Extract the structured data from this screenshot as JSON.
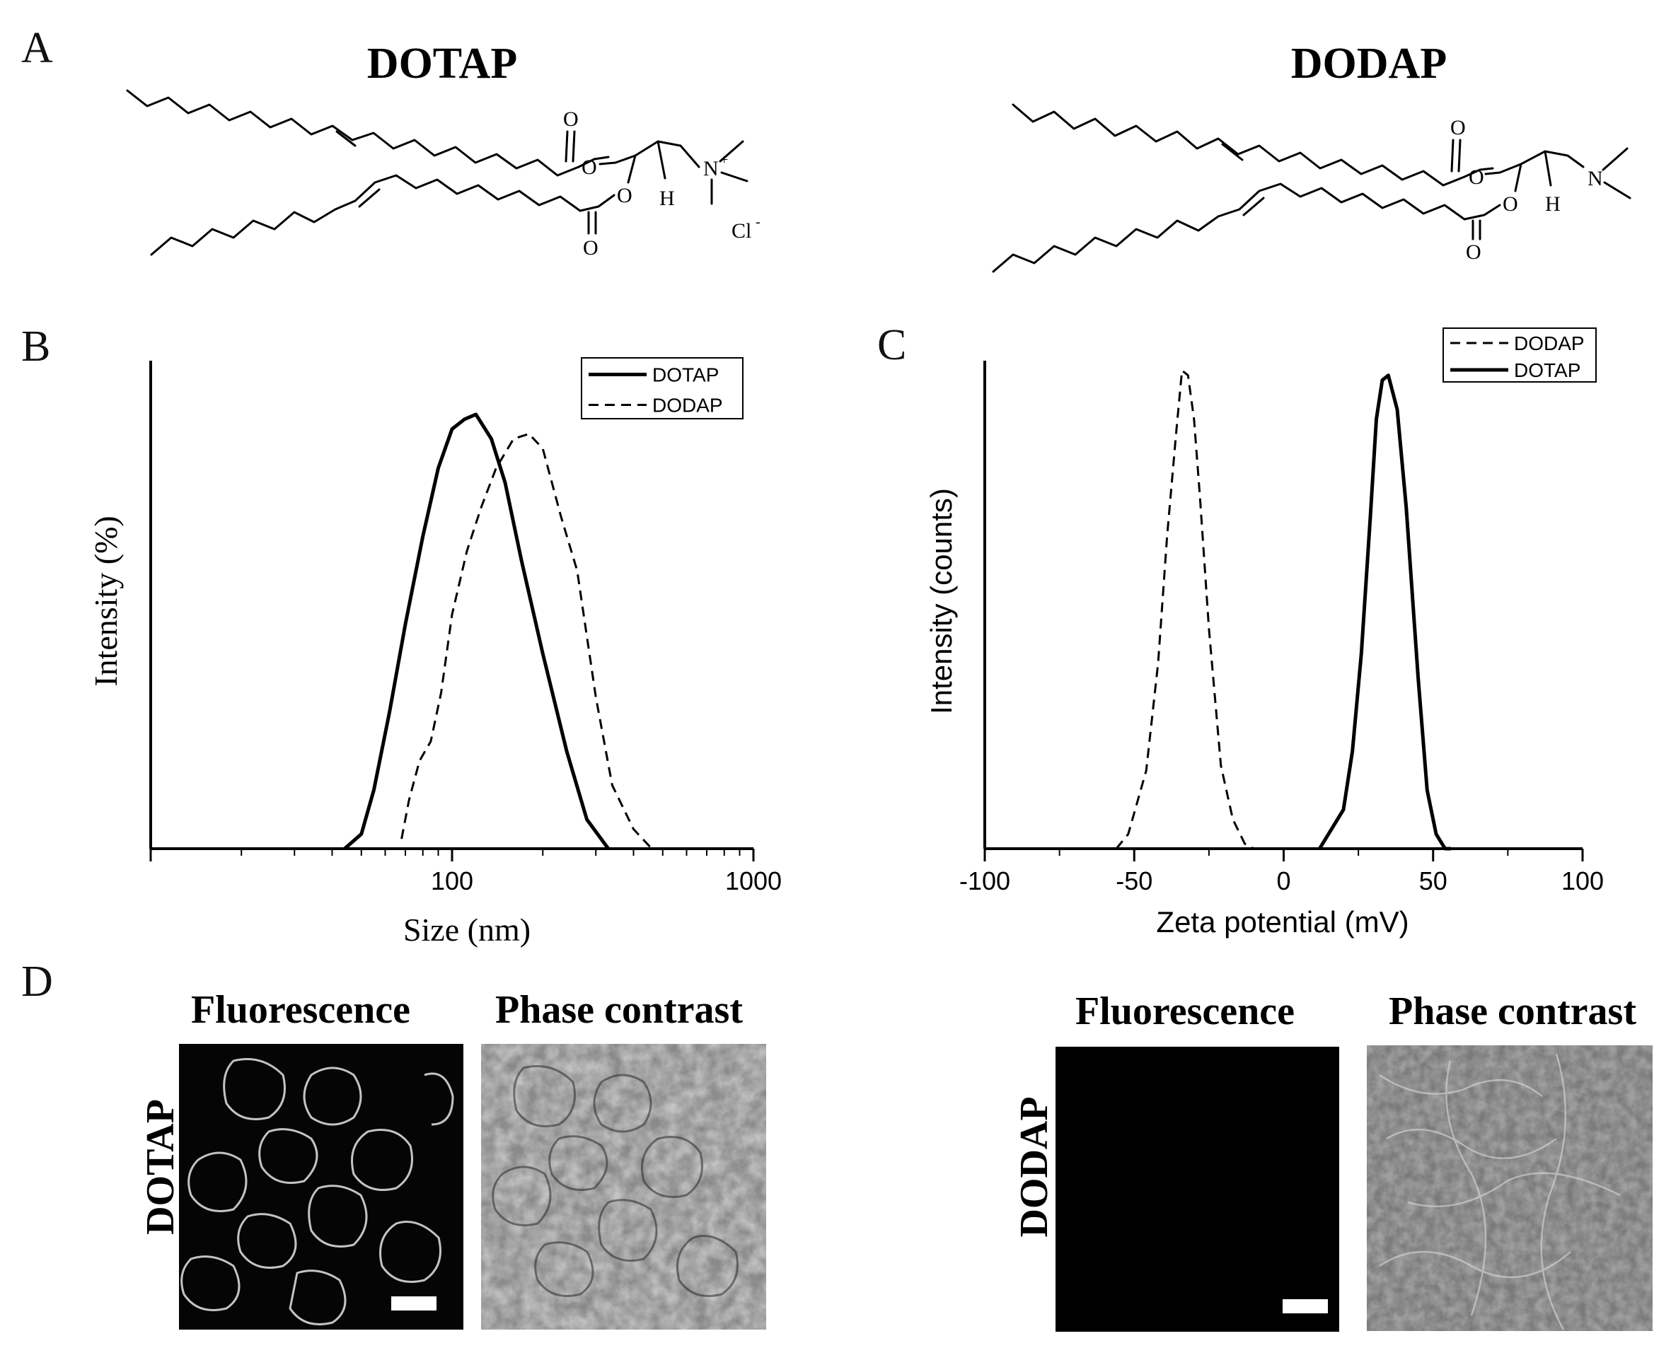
{
  "panels": {
    "A": {
      "letter": "A",
      "structures": [
        {
          "name": "DOTAP",
          "atoms": {
            "o1": "O",
            "o2": "O",
            "o3": "O",
            "o4": "O",
            "n": "N",
            "charge": "+",
            "h": "H",
            "cl": "Cl",
            "cl_charge": "-"
          }
        },
        {
          "name": "DODAP",
          "atoms": {
            "o1": "O",
            "o2": "O",
            "o3": "O",
            "o4": "O",
            "n": "N",
            "h": "H"
          }
        }
      ]
    },
    "B": {
      "letter": "B"
    },
    "C": {
      "letter": "C"
    },
    "D": {
      "letter": "D",
      "column_labels": [
        "Fluorescence",
        "Phase contrast",
        "Fluorescence",
        "Phase contrast"
      ],
      "row_labels": [
        "DOTAP",
        "DODAP"
      ]
    }
  },
  "chart_data": [
    {
      "type": "line",
      "panel": "B",
      "xlabel": "Size (nm)",
      "ylabel": "Intensity (%)",
      "x_scale": "log",
      "xlim": [
        10,
        1000
      ],
      "ylim": [
        0,
        100
      ],
      "xticks": [
        100,
        1000
      ],
      "xtick_labels": [
        "100",
        "1000"
      ],
      "legend": {
        "position": "top-right",
        "entries": [
          "DOTAP",
          "DODAP"
        ]
      },
      "series": [
        {
          "name": "DOTAP",
          "style": "solid",
          "x": [
            44,
            50,
            55,
            62,
            70,
            80,
            90,
            100,
            110,
            120,
            135,
            150,
            170,
            200,
            240,
            280,
            330
          ],
          "y": [
            0,
            3,
            12,
            28,
            46,
            64,
            78,
            86,
            88,
            89,
            84,
            75,
            59,
            40,
            20,
            6,
            0
          ]
        },
        {
          "name": "DODAP",
          "style": "dashed",
          "x": [
            68,
            72,
            78,
            85,
            92,
            100,
            112,
            125,
            140,
            160,
            180,
            200,
            230,
            260,
            300,
            340,
            400,
            460
          ],
          "y": [
            2,
            10,
            18,
            22,
            32,
            48,
            61,
            70,
            78,
            84,
            85,
            82,
            68,
            57,
            31,
            13,
            4,
            0
          ]
        }
      ]
    },
    {
      "type": "line",
      "panel": "C",
      "xlabel": "Zeta potential (mV)",
      "ylabel": "Intensity (counts)",
      "xlim": [
        -100,
        100
      ],
      "ylim": [
        0,
        100
      ],
      "xticks": [
        -100,
        -50,
        0,
        50,
        100
      ],
      "xtick_labels": [
        "-100",
        "-50",
        "0",
        "50",
        "100"
      ],
      "legend": {
        "position": "top-right",
        "entries": [
          "DODAP",
          "DOTAP"
        ]
      },
      "series": [
        {
          "name": "DODAP",
          "style": "dashed",
          "x": [
            -56,
            -52,
            -46,
            -42,
            -39,
            -36,
            -34,
            -32,
            -30,
            -28,
            -25,
            -21,
            -17,
            -13,
            -10
          ],
          "y": [
            0,
            3,
            16,
            38,
            64,
            85,
            98,
            97,
            88,
            72,
            45,
            17,
            6,
            1,
            0
          ]
        },
        {
          "name": "DOTAP",
          "style": "solid",
          "x": [
            12,
            16,
            20,
            23,
            26,
            29,
            31,
            33,
            35,
            38,
            41,
            45,
            48,
            51,
            54,
            56
          ],
          "y": [
            0,
            4,
            8,
            20,
            40,
            68,
            88,
            96,
            97,
            90,
            70,
            35,
            12,
            3,
            0,
            0
          ]
        }
      ]
    }
  ]
}
